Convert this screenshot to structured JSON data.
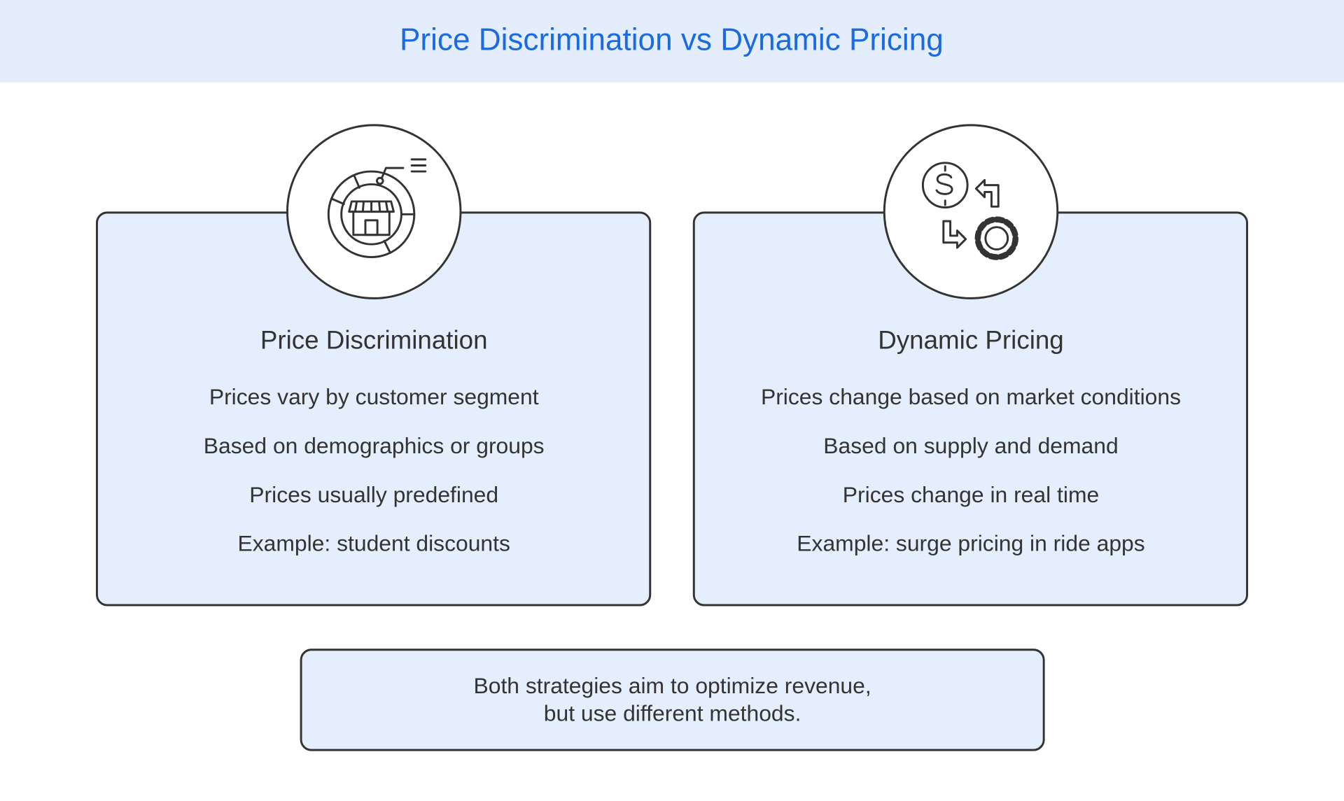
{
  "header": {
    "title": "Price Discrimination vs Dynamic Pricing"
  },
  "cards": [
    {
      "title": "Price Discrimination",
      "items": [
        "Prices vary by customer segment",
        "Based on demographics or groups",
        "Prices usually predefined",
        "Example: student discounts"
      ]
    },
    {
      "title": "Dynamic Pricing",
      "items": [
        "Prices change based on market conditions",
        "Based on supply and demand",
        "Prices change in real time",
        "Example: surge pricing in ride apps"
      ]
    }
  ],
  "footer": {
    "lines": [
      "Both strategies aim to optimize revenue,",
      "but use different methods."
    ]
  }
}
